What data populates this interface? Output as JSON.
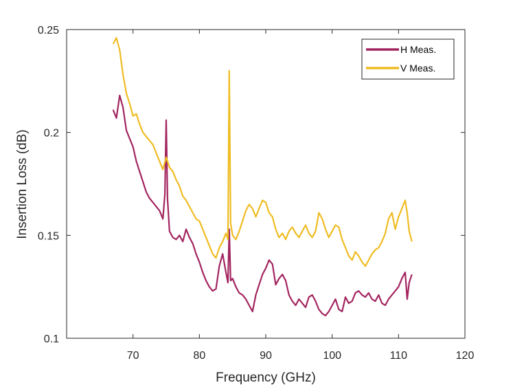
{
  "chart_data": {
    "type": "line",
    "title": "",
    "xlabel": "Frequency (GHz)",
    "ylabel": "Insertion Loss (dB)",
    "xlim": [
      60,
      120
    ],
    "ylim": [
      0.1,
      0.25
    ],
    "xticks": [
      70,
      80,
      90,
      100,
      110,
      120
    ],
    "yticks": [
      0.1,
      0.15,
      0.2,
      0.25
    ],
    "xtick_labels": [
      "70",
      "80",
      "90",
      "100",
      "110",
      "120"
    ],
    "ytick_labels": [
      "0.1",
      "0.15",
      "0.2",
      "0.25"
    ],
    "grid": false,
    "legend_position": "top-right",
    "series": [
      {
        "name": "H Meas.",
        "color": "#a2245f",
        "x": [
          67,
          67.5,
          68,
          68.5,
          69,
          69.5,
          70,
          70.5,
          71,
          71.5,
          72,
          72.5,
          73,
          73.5,
          74,
          74.5,
          74.8,
          75,
          75.2,
          75.5,
          76,
          76.5,
          77,
          77.5,
          78,
          78.5,
          79,
          79.5,
          80,
          80.5,
          81,
          81.5,
          82,
          82.5,
          83,
          83.5,
          84,
          84.3,
          84.5,
          84.7,
          85,
          85.5,
          86,
          86.5,
          87,
          87.5,
          88,
          88.5,
          89,
          89.5,
          90,
          90.5,
          91,
          91.5,
          92,
          92.5,
          93,
          93.5,
          94,
          94.5,
          95,
          95.5,
          96,
          96.5,
          97,
          97.5,
          98,
          98.5,
          99,
          99.5,
          100,
          100.5,
          101,
          101.5,
          102,
          102.5,
          103,
          103.5,
          104,
          104.5,
          105,
          105.5,
          106,
          106.5,
          107,
          107.5,
          108,
          108.5,
          109,
          109.5,
          110,
          110.5,
          111,
          111.3,
          111.6,
          112
        ],
        "y": [
          0.211,
          0.207,
          0.218,
          0.212,
          0.201,
          0.197,
          0.193,
          0.186,
          0.181,
          0.176,
          0.171,
          0.168,
          0.166,
          0.164,
          0.162,
          0.158,
          0.17,
          0.206,
          0.168,
          0.152,
          0.149,
          0.148,
          0.15,
          0.147,
          0.153,
          0.149,
          0.146,
          0.141,
          0.137,
          0.132,
          0.128,
          0.125,
          0.123,
          0.124,
          0.135,
          0.141,
          0.132,
          0.127,
          0.153,
          0.128,
          0.129,
          0.125,
          0.122,
          0.121,
          0.119,
          0.116,
          0.113,
          0.121,
          0.126,
          0.131,
          0.134,
          0.138,
          0.136,
          0.126,
          0.129,
          0.131,
          0.128,
          0.121,
          0.118,
          0.116,
          0.119,
          0.117,
          0.115,
          0.12,
          0.121,
          0.118,
          0.114,
          0.112,
          0.111,
          0.113,
          0.116,
          0.119,
          0.114,
          0.113,
          0.12,
          0.117,
          0.118,
          0.122,
          0.123,
          0.121,
          0.12,
          0.122,
          0.119,
          0.118,
          0.121,
          0.117,
          0.116,
          0.119,
          0.121,
          0.123,
          0.125,
          0.129,
          0.132,
          0.119,
          0.127,
          0.131
        ]
      },
      {
        "name": "V Meas.",
        "color": "#efbc22",
        "x": [
          67,
          67.5,
          68,
          68.5,
          69,
          69.5,
          70,
          70.5,
          71,
          71.5,
          72,
          72.5,
          73,
          73.5,
          74,
          74.5,
          75,
          75.5,
          76,
          76.5,
          77,
          77.5,
          78,
          78.5,
          79,
          79.5,
          80,
          80.5,
          81,
          81.5,
          82,
          82.5,
          83,
          83.5,
          84,
          84.3,
          84.5,
          84.7,
          85,
          85.5,
          86,
          86.5,
          87,
          87.5,
          88,
          88.5,
          89,
          89.5,
          90,
          90.5,
          91,
          91.5,
          92,
          92.5,
          93,
          93.5,
          94,
          94.5,
          95,
          95.5,
          96,
          96.5,
          97,
          97.5,
          98,
          98.5,
          99,
          99.5,
          100,
          100.5,
          101,
          101.5,
          102,
          102.5,
          103,
          103.5,
          104,
          104.5,
          105,
          105.5,
          106,
          106.5,
          107,
          107.5,
          108,
          108.5,
          109,
          109.5,
          110,
          110.5,
          111,
          111.3,
          111.6,
          112
        ],
        "y": [
          0.243,
          0.246,
          0.24,
          0.228,
          0.219,
          0.214,
          0.208,
          0.209,
          0.204,
          0.2,
          0.198,
          0.196,
          0.194,
          0.19,
          0.186,
          0.182,
          0.188,
          0.183,
          0.181,
          0.177,
          0.174,
          0.169,
          0.167,
          0.164,
          0.161,
          0.158,
          0.157,
          0.153,
          0.149,
          0.145,
          0.141,
          0.139,
          0.144,
          0.147,
          0.151,
          0.148,
          0.23,
          0.156,
          0.15,
          0.148,
          0.152,
          0.157,
          0.162,
          0.165,
          0.163,
          0.159,
          0.163,
          0.167,
          0.166,
          0.161,
          0.159,
          0.153,
          0.149,
          0.151,
          0.148,
          0.152,
          0.154,
          0.151,
          0.149,
          0.152,
          0.155,
          0.151,
          0.149,
          0.152,
          0.161,
          0.158,
          0.153,
          0.149,
          0.152,
          0.155,
          0.154,
          0.148,
          0.144,
          0.14,
          0.138,
          0.142,
          0.14,
          0.137,
          0.135,
          0.138,
          0.141,
          0.143,
          0.144,
          0.147,
          0.151,
          0.158,
          0.161,
          0.153,
          0.159,
          0.163,
          0.167,
          0.161,
          0.152,
          0.147
        ]
      }
    ]
  }
}
